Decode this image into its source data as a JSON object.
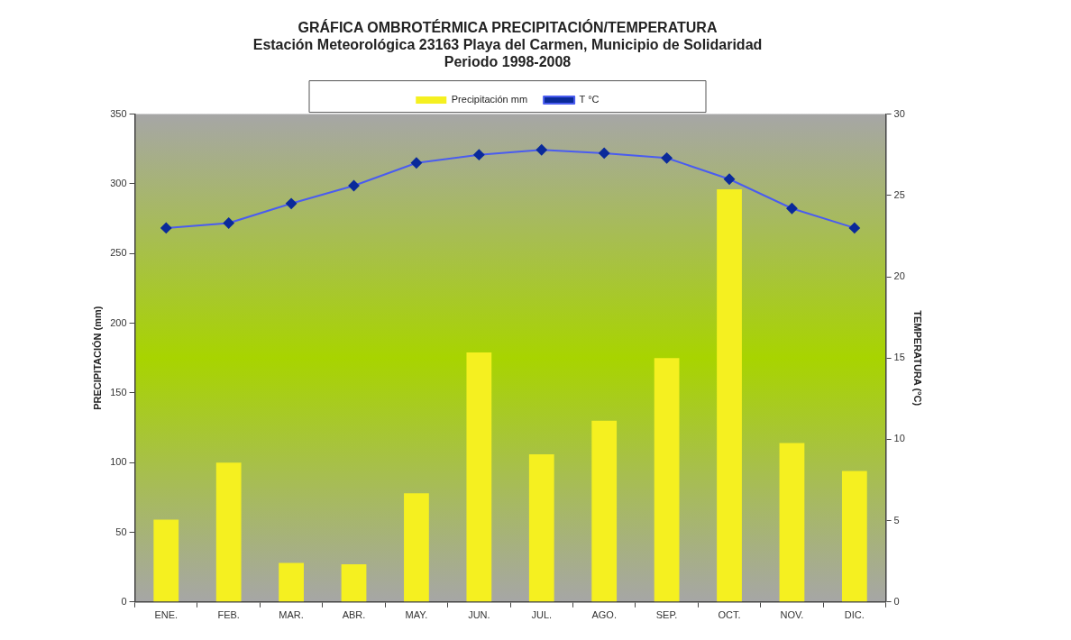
{
  "chart_data": {
    "type": "bar",
    "title": "GRÁFICA OMBROTÉRMICA PRECIPITACIÓN/TEMPERATURA",
    "subtitle": "Estación Meteorológica 23163 Playa del Carmen, Municipio de Solidaridad\nPeriodo 1998-2008",
    "ylabel": "PRECIPITACIÓN (mm)",
    "y2label": "TEMPERATURA (°C)",
    "categories": [
      "ENE.",
      "FEB.",
      "MAR.",
      "ABR.",
      "MAY.",
      "JUN.",
      "JUL.",
      "AGO.",
      "SEP.",
      "OCT.",
      "NOV.",
      "DIC."
    ],
    "series": [
      {
        "name": "Precipitación mm",
        "color": "#f5f020",
        "values": [
          59,
          100,
          28,
          27,
          78,
          179,
          106,
          130,
          175,
          296,
          114,
          94
        ]
      },
      {
        "name": "T °C",
        "type": "line",
        "axis": "y2",
        "color": "#4a5cf0",
        "marker": "diamond",
        "values": [
          23.0,
          23.3,
          24.5,
          25.6,
          27.0,
          27.5,
          27.8,
          27.6,
          27.3,
          26.0,
          24.2,
          23.0
        ]
      }
    ],
    "ylim": [
      0,
      350
    ],
    "yticks": [
      0,
      50,
      100,
      150,
      200,
      250,
      300,
      350
    ],
    "y2lim": [
      0,
      30
    ],
    "y2ticks": [
      0,
      5,
      10,
      15,
      20,
      25,
      30
    ],
    "grid": false,
    "legend": "top"
  }
}
